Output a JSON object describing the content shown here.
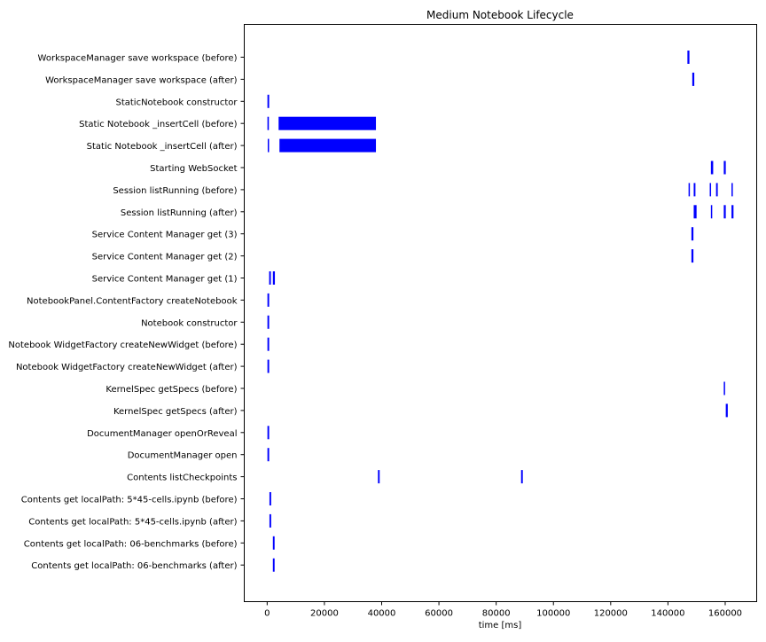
{
  "chart_data": {
    "type": "bar",
    "orientation": "horizontal-broken-bars",
    "title": "Medium Notebook Lifecycle",
    "xlabel": "time [ms]",
    "ylabel": "",
    "xlim": [
      -8000,
      171000
    ],
    "x_ticks": [
      0,
      20000,
      40000,
      60000,
      80000,
      100000,
      120000,
      140000,
      160000
    ],
    "grid": false,
    "legend": "none",
    "bar_color": "#0000ff",
    "categories": [
      "WorkspaceManager save workspace (before)",
      "WorkspaceManager save workspace (after)",
      "StaticNotebook constructor",
      "Static Notebook _insertCell (before)",
      "Static Notebook _insertCell (after)",
      "Starting WebSocket",
      "Session listRunning (before)",
      "Session listRunning (after)",
      "Service Content Manager get (3)",
      "Service Content Manager get (2)",
      "Service Content Manager get (1)",
      "NotebookPanel.ContentFactory createNotebook",
      "Notebook constructor",
      "Notebook WidgetFactory createNewWidget (before)",
      "Notebook WidgetFactory createNewWidget (after)",
      "KernelSpec getSpecs (before)",
      "KernelSpec getSpecs (after)",
      "DocumentManager openOrReveal",
      "DocumentManager open",
      "Contents listCheckpoints",
      "Contents get localPath: 5*45-cells.ipynb (before)",
      "Contents get localPath: 5*45-cells.ipynb (after)",
      "Contents get localPath: 06-benchmarks (before)",
      "Contents get localPath: 06-benchmarks (after)"
    ],
    "intervals": [
      [
        [
          146800,
          147500
        ]
      ],
      [
        [
          148500,
          149200
        ]
      ],
      [
        [
          100,
          700
        ]
      ],
      [
        [
          100,
          600
        ],
        [
          4000,
          38000
        ]
      ],
      [
        [
          200,
          600
        ],
        [
          4300,
          38000
        ]
      ],
      [
        [
          155000,
          155800
        ],
        [
          159500,
          160200
        ]
      ],
      [
        [
          147200,
          147600
        ],
        [
          149000,
          149600
        ],
        [
          154600,
          155000
        ],
        [
          156800,
          157400
        ],
        [
          162200,
          162600
        ]
      ],
      [
        [
          149000,
          150000
        ],
        [
          155000,
          155400
        ],
        [
          159500,
          160200
        ],
        [
          162200,
          162900
        ]
      ],
      [
        [
          148200,
          148900
        ]
      ],
      [
        [
          148200,
          148900
        ]
      ],
      [
        [
          700,
          1300
        ],
        [
          2000,
          2700
        ]
      ],
      [
        [
          100,
          700
        ]
      ],
      [
        [
          100,
          700
        ]
      ],
      [
        [
          100,
          700
        ]
      ],
      [
        [
          100,
          700
        ]
      ],
      [
        [
          159500,
          159900
        ]
      ],
      [
        [
          160200,
          160900
        ]
      ],
      [
        [
          100,
          700
        ]
      ],
      [
        [
          100,
          700
        ]
      ],
      [
        [
          38700,
          39300
        ],
        [
          88700,
          89300
        ]
      ],
      [
        [
          800,
          1400
        ]
      ],
      [
        [
          800,
          1400
        ]
      ],
      [
        [
          2000,
          2600
        ]
      ],
      [
        [
          2000,
          2600
        ]
      ]
    ]
  }
}
